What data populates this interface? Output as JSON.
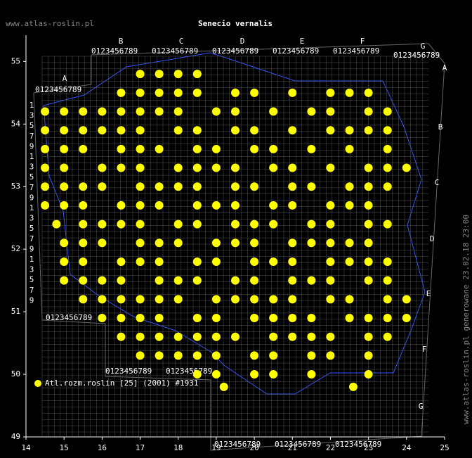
{
  "site": "www.atlas-roslin.pl",
  "side_note": "www.atlas-roslin.pl generowane 23.02.18 23:00",
  "grid_col_labels": [
    "A",
    "B",
    "C",
    "D",
    "E",
    "F",
    "G"
  ],
  "grid_digits": "0123456789",
  "grid_side_digits": [
    "1",
    "3",
    "5",
    "7",
    "9"
  ],
  "chart_data": {
    "type": "scatter",
    "title": "Senecio vernalis",
    "xlim": [
      14,
      25
    ],
    "ylim": [
      49,
      55.42
    ],
    "xticks": [
      14,
      15,
      16,
      17,
      18,
      19,
      20,
      21,
      22,
      23,
      24,
      25
    ],
    "yticks": [
      49,
      50,
      51,
      52,
      53,
      54,
      55
    ],
    "series": [
      {
        "name": "Atl.rozm.roslin [25] (2001) #1931",
        "color": "#ffff00",
        "points": [
          [
            17.0,
            54.8
          ],
          [
            17.5,
            54.8
          ],
          [
            18.0,
            54.8
          ],
          [
            18.5,
            54.8
          ],
          [
            16.5,
            54.5
          ],
          [
            17.0,
            54.5
          ],
          [
            17.5,
            54.5
          ],
          [
            18.0,
            54.5
          ],
          [
            18.5,
            54.5
          ],
          [
            19.5,
            54.5
          ],
          [
            20.0,
            54.5
          ],
          [
            21.0,
            54.5
          ],
          [
            22.0,
            54.5
          ],
          [
            22.5,
            54.5
          ],
          [
            23.0,
            54.5
          ],
          [
            14.5,
            54.2
          ],
          [
            15.0,
            54.2
          ],
          [
            15.5,
            54.2
          ],
          [
            16.0,
            54.2
          ],
          [
            16.5,
            54.2
          ],
          [
            17.0,
            54.2
          ],
          [
            17.5,
            54.2
          ],
          [
            18.0,
            54.2
          ],
          [
            19.0,
            54.2
          ],
          [
            19.5,
            54.2
          ],
          [
            20.5,
            54.2
          ],
          [
            21.5,
            54.2
          ],
          [
            22.0,
            54.2
          ],
          [
            23.0,
            54.2
          ],
          [
            23.5,
            54.2
          ],
          [
            14.5,
            53.9
          ],
          [
            15.0,
            53.9
          ],
          [
            15.5,
            53.9
          ],
          [
            16.0,
            53.9
          ],
          [
            16.5,
            53.9
          ],
          [
            17.0,
            53.9
          ],
          [
            18.0,
            53.9
          ],
          [
            18.5,
            53.9
          ],
          [
            19.5,
            53.9
          ],
          [
            20.0,
            53.9
          ],
          [
            21.0,
            53.9
          ],
          [
            22.0,
            53.9
          ],
          [
            22.5,
            53.9
          ],
          [
            23.0,
            53.9
          ],
          [
            23.5,
            53.9
          ],
          [
            14.5,
            53.6
          ],
          [
            15.0,
            53.6
          ],
          [
            15.5,
            53.6
          ],
          [
            16.5,
            53.6
          ],
          [
            17.0,
            53.6
          ],
          [
            17.5,
            53.6
          ],
          [
            18.5,
            53.6
          ],
          [
            19.0,
            53.6
          ],
          [
            20.0,
            53.6
          ],
          [
            20.5,
            53.6
          ],
          [
            21.5,
            53.6
          ],
          [
            22.5,
            53.6
          ],
          [
            23.5,
            53.6
          ],
          [
            14.5,
            53.3
          ],
          [
            15.0,
            53.3
          ],
          [
            16.0,
            53.3
          ],
          [
            16.5,
            53.3
          ],
          [
            17.0,
            53.3
          ],
          [
            18.0,
            53.3
          ],
          [
            18.5,
            53.3
          ],
          [
            19.0,
            53.3
          ],
          [
            19.5,
            53.3
          ],
          [
            20.5,
            53.3
          ],
          [
            21.0,
            53.3
          ],
          [
            22.0,
            53.3
          ],
          [
            23.0,
            53.3
          ],
          [
            23.5,
            53.3
          ],
          [
            24.0,
            53.3
          ],
          [
            14.5,
            53.0
          ],
          [
            15.0,
            53.0
          ],
          [
            15.5,
            53.0
          ],
          [
            16.0,
            53.0
          ],
          [
            17.0,
            53.0
          ],
          [
            17.5,
            53.0
          ],
          [
            18.0,
            53.0
          ],
          [
            18.5,
            53.0
          ],
          [
            19.5,
            53.0
          ],
          [
            20.0,
            53.0
          ],
          [
            21.0,
            53.0
          ],
          [
            21.5,
            53.0
          ],
          [
            22.5,
            53.0
          ],
          [
            23.0,
            53.0
          ],
          [
            23.5,
            53.0
          ],
          [
            14.5,
            52.7
          ],
          [
            15.0,
            52.7
          ],
          [
            15.5,
            52.7
          ],
          [
            16.5,
            52.7
          ],
          [
            17.0,
            52.7
          ],
          [
            17.5,
            52.7
          ],
          [
            18.5,
            52.7
          ],
          [
            19.0,
            52.7
          ],
          [
            19.5,
            52.7
          ],
          [
            20.5,
            52.7
          ],
          [
            21.0,
            52.7
          ],
          [
            22.0,
            52.7
          ],
          [
            22.5,
            52.7
          ],
          [
            23.0,
            52.7
          ],
          [
            14.8,
            52.4
          ],
          [
            15.5,
            52.4
          ],
          [
            16.0,
            52.4
          ],
          [
            16.5,
            52.4
          ],
          [
            17.0,
            52.4
          ],
          [
            18.0,
            52.4
          ],
          [
            18.5,
            52.4
          ],
          [
            19.5,
            52.4
          ],
          [
            20.0,
            52.4
          ],
          [
            20.5,
            52.4
          ],
          [
            21.5,
            52.4
          ],
          [
            22.0,
            52.4
          ],
          [
            23.0,
            52.4
          ],
          [
            23.5,
            52.4
          ],
          [
            15.0,
            52.1
          ],
          [
            15.5,
            52.1
          ],
          [
            16.0,
            52.1
          ],
          [
            17.0,
            52.1
          ],
          [
            17.5,
            52.1
          ],
          [
            18.0,
            52.1
          ],
          [
            19.0,
            52.1
          ],
          [
            19.5,
            52.1
          ],
          [
            20.0,
            52.1
          ],
          [
            21.0,
            52.1
          ],
          [
            21.5,
            52.1
          ],
          [
            22.0,
            52.1
          ],
          [
            22.5,
            52.1
          ],
          [
            23.0,
            52.1
          ],
          [
            15.0,
            51.8
          ],
          [
            15.5,
            51.8
          ],
          [
            16.5,
            51.8
          ],
          [
            17.0,
            51.8
          ],
          [
            17.5,
            51.8
          ],
          [
            18.5,
            51.8
          ],
          [
            19.0,
            51.8
          ],
          [
            20.0,
            51.8
          ],
          [
            20.5,
            51.8
          ],
          [
            21.0,
            51.8
          ],
          [
            22.0,
            51.8
          ],
          [
            22.5,
            51.8
          ],
          [
            23.0,
            51.8
          ],
          [
            23.5,
            51.8
          ],
          [
            15.0,
            51.5
          ],
          [
            15.5,
            51.5
          ],
          [
            16.0,
            51.5
          ],
          [
            16.5,
            51.5
          ],
          [
            17.5,
            51.5
          ],
          [
            18.0,
            51.5
          ],
          [
            18.5,
            51.5
          ],
          [
            19.5,
            51.5
          ],
          [
            20.0,
            51.5
          ],
          [
            21.0,
            51.5
          ],
          [
            21.5,
            51.5
          ],
          [
            22.0,
            51.5
          ],
          [
            23.0,
            51.5
          ],
          [
            23.5,
            51.5
          ],
          [
            15.5,
            51.2
          ],
          [
            16.0,
            51.2
          ],
          [
            16.5,
            51.2
          ],
          [
            17.0,
            51.2
          ],
          [
            17.5,
            51.2
          ],
          [
            18.0,
            51.2
          ],
          [
            19.0,
            51.2
          ],
          [
            19.5,
            51.2
          ],
          [
            20.0,
            51.2
          ],
          [
            20.5,
            51.2
          ],
          [
            21.0,
            51.2
          ],
          [
            22.0,
            51.2
          ],
          [
            22.5,
            51.2
          ],
          [
            23.5,
            51.2
          ],
          [
            24.0,
            51.2
          ],
          [
            16.0,
            50.9
          ],
          [
            16.5,
            50.9
          ],
          [
            17.0,
            50.9
          ],
          [
            17.5,
            50.9
          ],
          [
            18.5,
            50.9
          ],
          [
            19.0,
            50.9
          ],
          [
            20.0,
            50.9
          ],
          [
            20.5,
            50.9
          ],
          [
            21.0,
            50.9
          ],
          [
            21.5,
            50.9
          ],
          [
            22.5,
            50.9
          ],
          [
            23.0,
            50.9
          ],
          [
            23.5,
            50.9
          ],
          [
            24.0,
            50.9
          ],
          [
            16.5,
            50.6
          ],
          [
            17.0,
            50.6
          ],
          [
            17.5,
            50.6
          ],
          [
            18.0,
            50.6
          ],
          [
            18.5,
            50.6
          ],
          [
            19.0,
            50.6
          ],
          [
            19.5,
            50.6
          ],
          [
            20.5,
            50.6
          ],
          [
            21.0,
            50.6
          ],
          [
            21.5,
            50.6
          ],
          [
            22.0,
            50.6
          ],
          [
            23.0,
            50.6
          ],
          [
            23.5,
            50.6
          ],
          [
            17.0,
            50.3
          ],
          [
            17.5,
            50.3
          ],
          [
            18.0,
            50.3
          ],
          [
            18.5,
            50.3
          ],
          [
            19.0,
            50.3
          ],
          [
            20.0,
            50.3
          ],
          [
            20.5,
            50.3
          ],
          [
            21.5,
            50.3
          ],
          [
            22.0,
            50.3
          ],
          [
            23.0,
            50.3
          ],
          [
            18.5,
            50.0
          ],
          [
            19.0,
            50.0
          ],
          [
            20.0,
            50.0
          ],
          [
            20.5,
            50.0
          ],
          [
            21.5,
            50.0
          ],
          [
            23.0,
            50.0
          ],
          [
            19.2,
            49.8
          ],
          [
            22.6,
            49.8
          ]
        ]
      }
    ]
  }
}
